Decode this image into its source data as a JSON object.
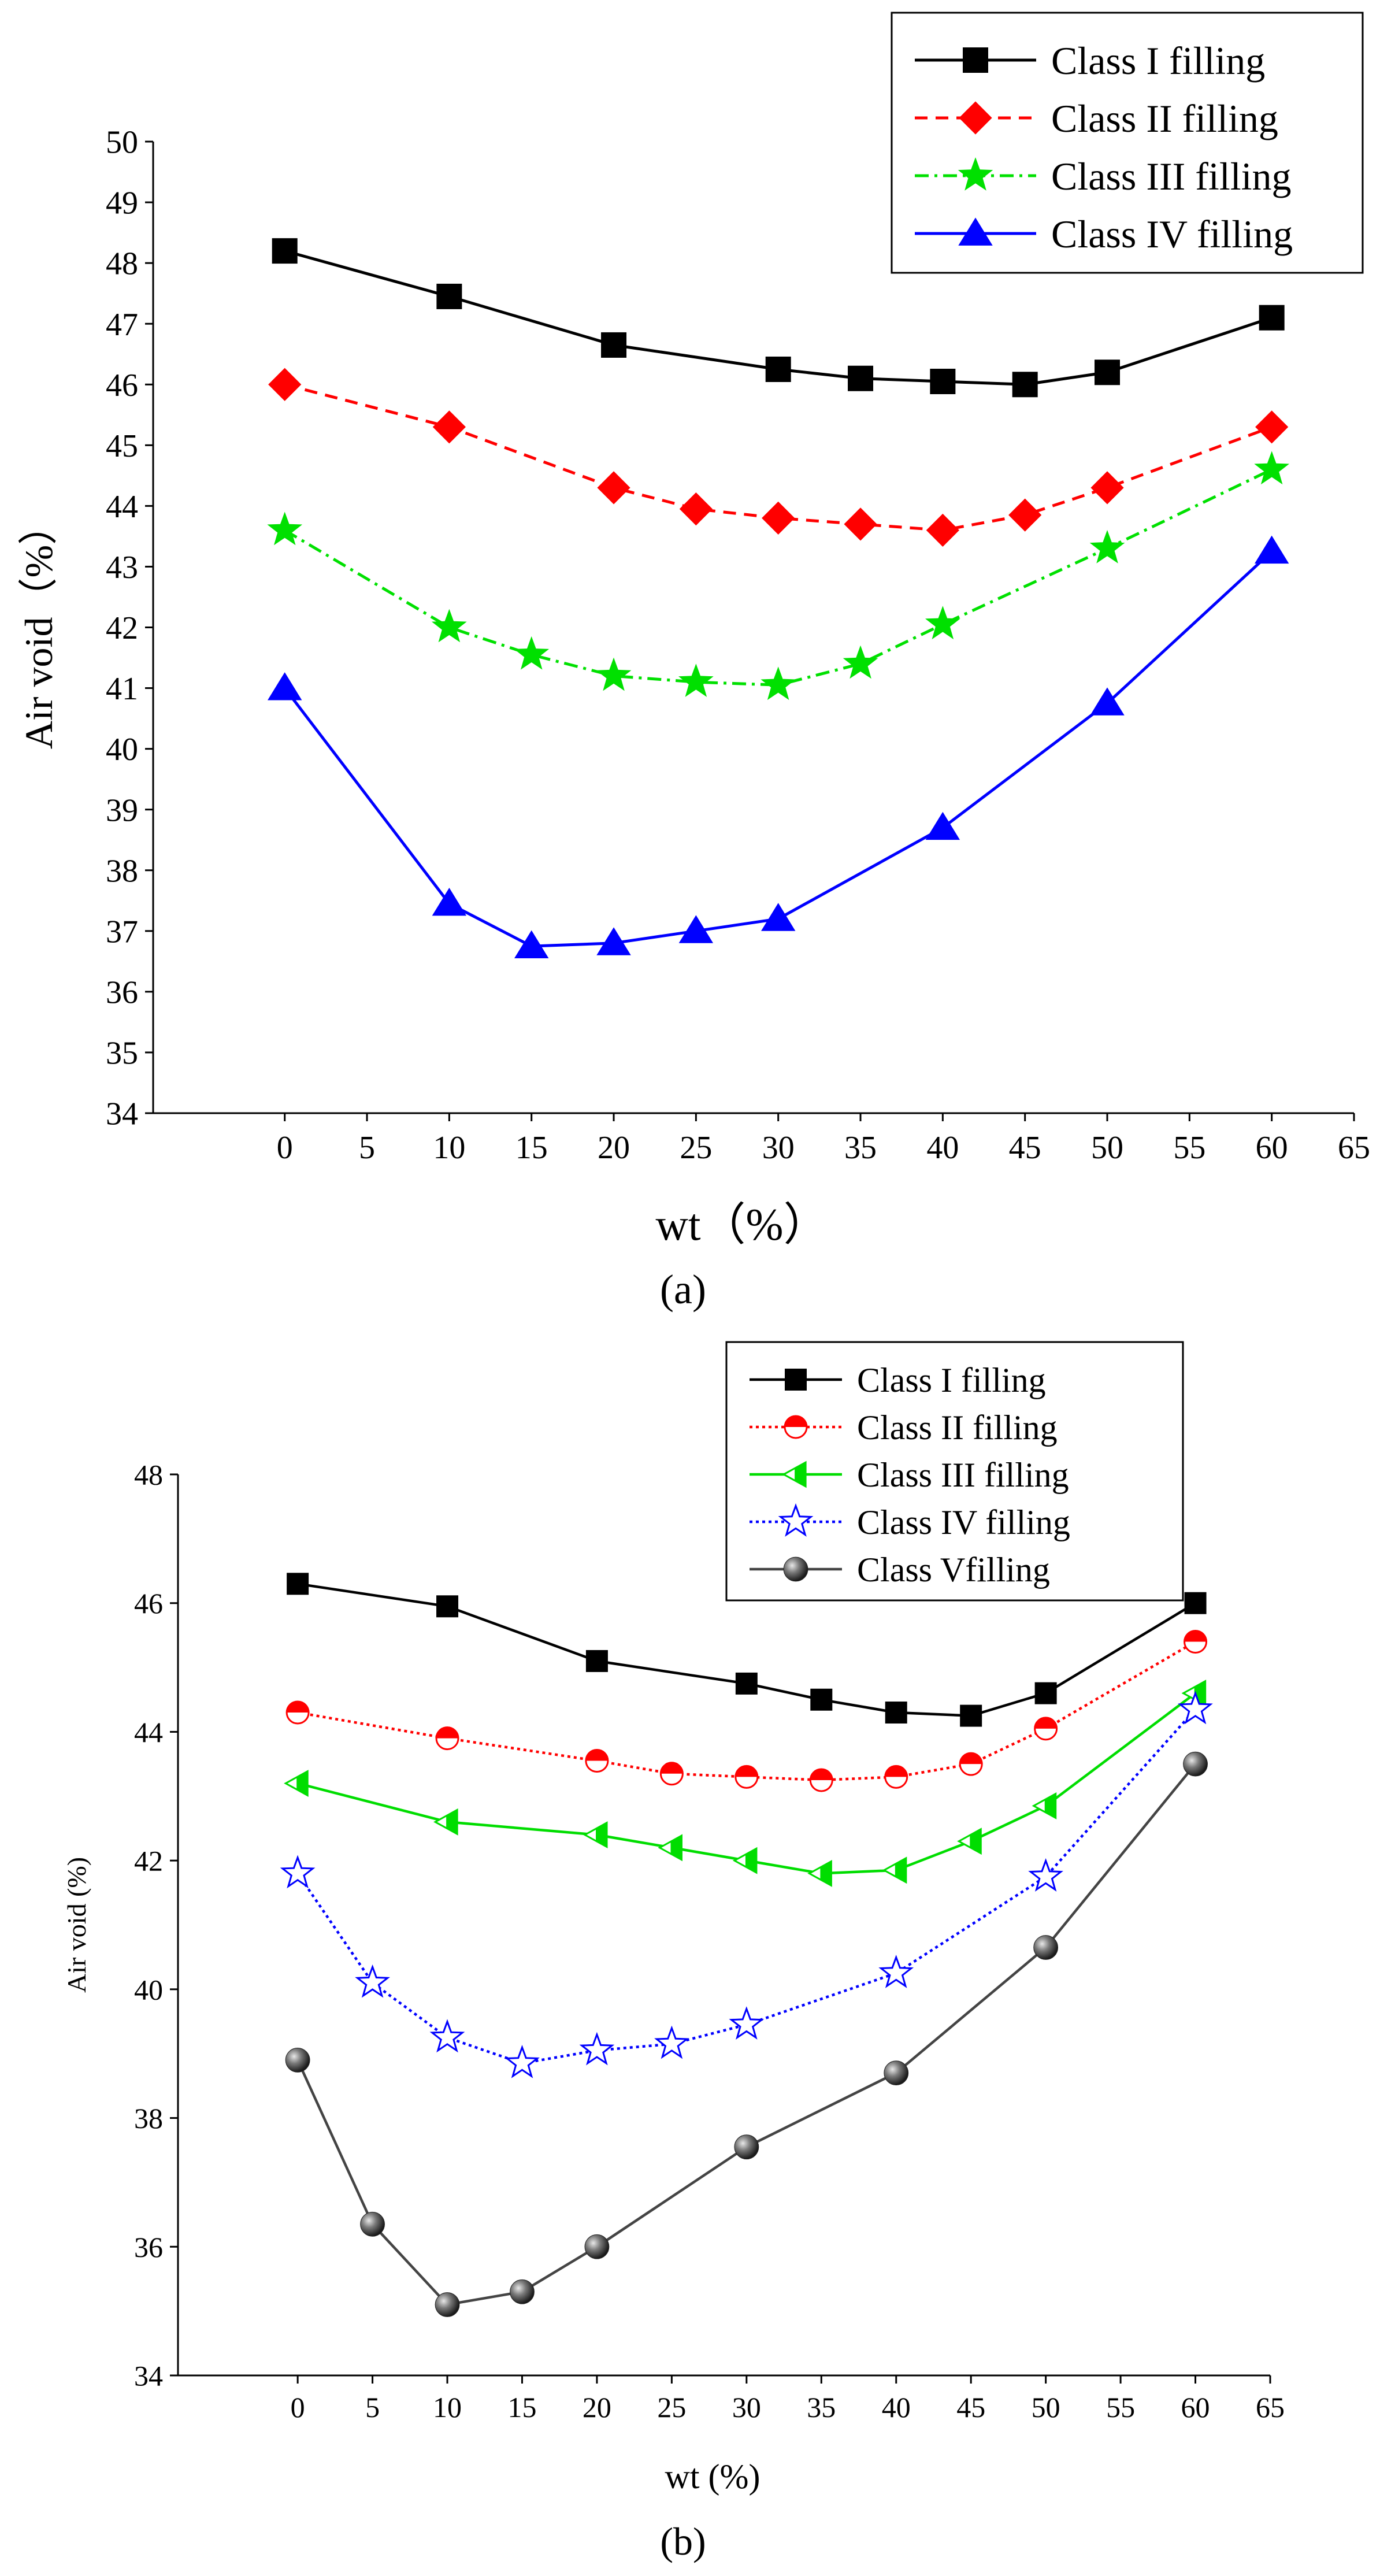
{
  "chart_data": [
    {
      "type": "line",
      "panel_label": "(a)",
      "xlabel": "wt（%）",
      "ylabel": "Air void（%）",
      "xlim": [
        -8,
        65
      ],
      "ylim": [
        34,
        50
      ],
      "x_ticks": [
        0,
        5,
        10,
        15,
        20,
        25,
        30,
        35,
        40,
        45,
        50,
        55,
        60,
        65
      ],
      "y_ticks": [
        34,
        35,
        36,
        37,
        38,
        39,
        40,
        41,
        42,
        43,
        44,
        45,
        46,
        47,
        48,
        49,
        50
      ],
      "grid": false,
      "legend_position": "top-right",
      "series": [
        {
          "name": "Class I filling",
          "color": "#000000",
          "marker": "square",
          "line": "solid",
          "x": [
            0,
            10,
            20,
            30,
            35,
            40,
            45,
            50,
            60
          ],
          "y": [
            48.2,
            47.45,
            46.65,
            46.25,
            46.1,
            46.05,
            46.0,
            46.2,
            47.1
          ]
        },
        {
          "name": "Class II filling",
          "color": "#ff0000",
          "marker": "diamond",
          "line": "dashed",
          "x": [
            0,
            10,
            20,
            25,
            30,
            35,
            40,
            45,
            50,
            60
          ],
          "y": [
            46.0,
            45.3,
            44.3,
            43.95,
            43.8,
            43.7,
            43.6,
            43.85,
            44.3,
            45.3
          ]
        },
        {
          "name": "Class III filling",
          "color": "#00e000",
          "marker": "star",
          "line": "dashdot",
          "x": [
            0,
            10,
            15,
            20,
            25,
            30,
            35,
            40,
            50,
            60
          ],
          "y": [
            43.6,
            42.0,
            41.55,
            41.2,
            41.1,
            41.05,
            41.4,
            42.05,
            43.3,
            44.6
          ]
        },
        {
          "name": "Class IV filling",
          "color": "#0000ff",
          "marker": "triangle",
          "line": "solid",
          "x": [
            0,
            10,
            15,
            20,
            25,
            30,
            40,
            50,
            60
          ],
          "y": [
            41.0,
            37.45,
            36.75,
            36.8,
            37.0,
            37.2,
            38.7,
            40.75,
            43.25
          ]
        }
      ]
    },
    {
      "type": "line",
      "panel_label": "(b)",
      "xlabel": "wt (%)",
      "ylabel": "Air void (%)",
      "xlim": [
        -8,
        65
      ],
      "ylim": [
        34,
        48
      ],
      "x_ticks": [
        0,
        5,
        10,
        15,
        20,
        25,
        30,
        35,
        40,
        45,
        50,
        55,
        60,
        65
      ],
      "y_ticks": [
        34,
        36,
        38,
        40,
        42,
        44,
        46,
        48
      ],
      "grid": false,
      "legend_position": "top-right",
      "series": [
        {
          "name": "Class I filling",
          "color": "#000000",
          "marker": "square",
          "line": "solid",
          "x": [
            0,
            10,
            20,
            30,
            35,
            40,
            45,
            50,
            60
          ],
          "y": [
            46.3,
            45.95,
            45.1,
            44.75,
            44.5,
            44.3,
            44.25,
            44.6,
            46.0
          ]
        },
        {
          "name": "Class II filling",
          "color": "#ff0000",
          "marker": "half-circle",
          "line": "dotted",
          "x": [
            0,
            10,
            20,
            25,
            30,
            35,
            40,
            45,
            50,
            60
          ],
          "y": [
            44.3,
            43.9,
            43.55,
            43.35,
            43.3,
            43.25,
            43.3,
            43.5,
            44.05,
            45.4
          ]
        },
        {
          "name": "Class III filling",
          "color": "#00dd00",
          "marker": "half-triangle",
          "line": "solid",
          "x": [
            0,
            10,
            20,
            25,
            30,
            35,
            40,
            45,
            50,
            60
          ],
          "y": [
            43.2,
            42.6,
            42.4,
            42.2,
            42.0,
            41.8,
            41.85,
            42.3,
            42.85,
            44.6
          ]
        },
        {
          "name": "Class IV filling",
          "color": "#0000ff",
          "marker": "star-outline",
          "line": "dotted",
          "x": [
            0,
            5,
            10,
            15,
            20,
            25,
            30,
            40,
            50,
            60
          ],
          "y": [
            41.8,
            40.1,
            39.25,
            38.85,
            39.05,
            39.15,
            39.45,
            40.25,
            41.75,
            44.35
          ]
        },
        {
          "name": "Class Vfilling",
          "color": "#444444",
          "marker": "sphere",
          "line": "solid",
          "x": [
            0,
            5,
            10,
            15,
            20,
            30,
            40,
            50,
            60
          ],
          "y": [
            38.9,
            36.35,
            35.1,
            35.3,
            36.0,
            37.55,
            38.7,
            40.65,
            43.5
          ]
        }
      ]
    }
  ]
}
